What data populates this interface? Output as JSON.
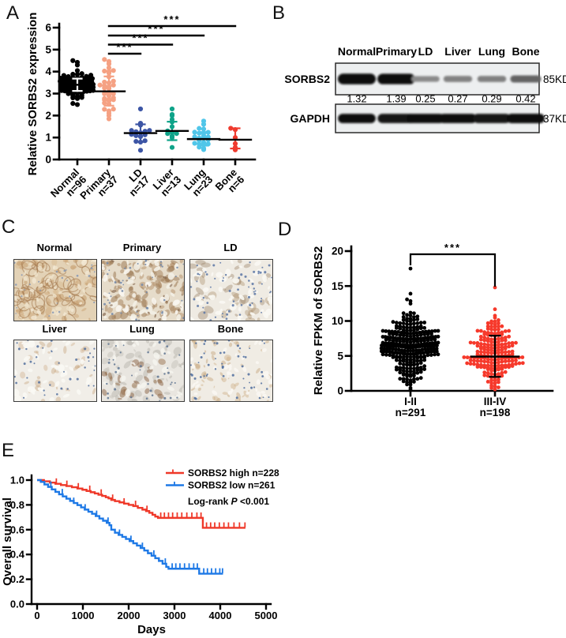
{
  "panels": {
    "a": {
      "label": "A"
    },
    "b": {
      "label": "B",
      "lanes": [
        "Normal",
        "Primary",
        "LD",
        "Liver",
        "Lung",
        "Bone"
      ],
      "rows": [
        {
          "protein": "SORBS2",
          "kd": "85KD",
          "values": [
            "1.32",
            "1.39",
            "0.25",
            "0.27",
            "0.29",
            "0.42"
          ],
          "strengths": [
            1,
            0.98,
            0.22,
            0.27,
            0.28,
            0.45
          ]
        },
        {
          "protein": "GAPDH",
          "kd": "37KD",
          "strengths": [
            0.95,
            0.9,
            0.95,
            0.95,
            0.92,
            1
          ]
        }
      ]
    },
    "c": {
      "label": "C",
      "images": [
        {
          "name": "Normal",
          "texture": {
            "bg": "#E3D2B6",
            "seed": 11,
            "layers": [
              {
                "type": "blob",
                "count": 90,
                "colors": [
                  "#CDA87C",
                  "#C49C6E",
                  "#D8BC94"
                ],
                "rmin": 2,
                "rmax": 6,
                "op": 0.55
              },
              {
                "type": "ring",
                "count": 46,
                "color": "#A87F55",
                "rmin": 4,
                "rmax": 11,
                "op": 0.6
              },
              {
                "type": "blob",
                "count": 50,
                "colors": [
                  "#F2E8D4",
                  "#EFE3CC"
                ],
                "rmin": 1.5,
                "rmax": 4,
                "op": 0.8
              },
              {
                "type": "dot",
                "count": 26,
                "color": "#8093B4",
                "rmin": 0.8,
                "rmax": 1.4,
                "op": 0.8
              }
            ]
          }
        },
        {
          "name": "Primary",
          "texture": {
            "bg": "#E6DCCA",
            "seed": 22,
            "layers": [
              {
                "type": "blob",
                "count": 120,
                "colors": [
                  "#A3805A",
                  "#97744E",
                  "#B3906A"
                ],
                "rmin": 2,
                "rmax": 6,
                "op": 0.5
              },
              {
                "type": "blob",
                "count": 60,
                "colors": [
                  "#F8F5EE",
                  "#F3EFE6"
                ],
                "rmin": 2,
                "rmax": 5,
                "op": 0.9
              },
              {
                "type": "blob",
                "count": 22,
                "colors": [
                  "#6F4F35"
                ],
                "rmin": 1,
                "rmax": 3,
                "op": 0.55
              },
              {
                "type": "dot",
                "count": 44,
                "color": "#7388A8",
                "rmin": 0.8,
                "rmax": 1.5,
                "op": 0.85
              }
            ]
          }
        },
        {
          "name": "LD",
          "texture": {
            "bg": "#EFEBE3",
            "seed": 33,
            "layers": [
              {
                "type": "blob",
                "count": 45,
                "colors": [
                  "#AD916F",
                  "#9C8266"
                ],
                "rmin": 2,
                "rmax": 7,
                "op": 0.4
              },
              {
                "type": "blob",
                "count": 50,
                "colors": [
                  "#FAF8F3"
                ],
                "rmin": 2,
                "rmax": 5,
                "op": 0.9
              },
              {
                "type": "dot",
                "count": 62,
                "color": "#5B76A4",
                "rmin": 0.9,
                "rmax": 1.6,
                "op": 0.85
              }
            ]
          }
        },
        {
          "name": "Liver",
          "texture": {
            "bg": "#F1EEE8",
            "seed": 44,
            "layers": [
              {
                "type": "blob",
                "count": 40,
                "colors": [
                  "#BC9468",
                  "#C8A37A"
                ],
                "rmin": 1.5,
                "rmax": 5,
                "op": 0.35
              },
              {
                "type": "blob",
                "count": 42,
                "colors": [
                  "#FAF8F4"
                ],
                "rmin": 2,
                "rmax": 5,
                "op": 0.9
              },
              {
                "type": "dot",
                "count": 40,
                "color": "#54709E",
                "rmin": 0.9,
                "rmax": 1.6,
                "op": 0.85
              }
            ]
          }
        },
        {
          "name": "Lung",
          "texture": {
            "bg": "#E9E6E0",
            "seed": 55,
            "layers": [
              {
                "type": "blob",
                "count": 70,
                "colors": [
                  "#BDBAB2",
                  "#C8C5BE"
                ],
                "rmin": 2,
                "rmax": 6,
                "op": 0.55
              },
              {
                "type": "blob",
                "count": 26,
                "colors": [
                  "#99714E",
                  "#8A6244"
                ],
                "rmin": 2,
                "rmax": 6,
                "op": 0.5,
                "region": [
                  0,
                  0.75,
                  0.35,
                  1
                ]
              },
              {
                "type": "blob",
                "count": 30,
                "colors": [
                  "#F6F4EF"
                ],
                "rmin": 2,
                "rmax": 5,
                "op": 0.85
              },
              {
                "type": "dot",
                "count": 40,
                "color": "#5F7490",
                "rmin": 0.9,
                "rmax": 1.6,
                "op": 0.85
              }
            ]
          }
        },
        {
          "name": "Bone",
          "texture": {
            "bg": "#F0ECE4",
            "seed": 66,
            "layers": [
              {
                "type": "blob",
                "count": 64,
                "colors": [
                  "#BE9A6C",
                  "#CBAA7E"
                ],
                "rmin": 1.5,
                "rmax": 5,
                "op": 0.4
              },
              {
                "type": "blob",
                "count": 40,
                "colors": [
                  "#FAF8F3"
                ],
                "rmin": 2,
                "rmax": 4,
                "op": 0.85
              },
              {
                "type": "dot",
                "count": 52,
                "color": "#506E9F",
                "rmin": 0.9,
                "rmax": 1.6,
                "op": 0.85
              }
            ]
          }
        }
      ]
    },
    "d": {
      "label": "D"
    },
    "e": {
      "label": "E",
      "annotation_parts": [
        "Log-rank ",
        "P",
        " <0.001"
      ]
    }
  },
  "chart_data": [
    {
      "panel": "A",
      "type": "scatter",
      "title": "",
      "ylabel": "Relative SORBS2 expression",
      "xlabel": "",
      "ylim": [
        0,
        6
      ],
      "ytick_labels": [
        "0",
        "1",
        "2",
        "3",
        "4",
        "5",
        "6"
      ],
      "grid": false,
      "legend_position": "none",
      "groups": [
        {
          "name": "Normal",
          "label2": "n=96",
          "n": 96,
          "color": "#000000",
          "err_color": "#ffffff",
          "mean": 3.4,
          "err_hi": 3.68,
          "err_lo": 3.12,
          "min": 2.45,
          "max": 4.55,
          "half_width": 20,
          "extra_points": [
            4.5,
            4.42,
            4.3,
            2.5,
            2.55
          ]
        },
        {
          "name": "Primary",
          "label2": "n=37",
          "n": 37,
          "color": "#F5A183",
          "err_color": "#F5A183",
          "mean": 3.1,
          "err_hi": 3.78,
          "err_lo": 2.45,
          "min": 1.9,
          "max": 4.6,
          "half_width": 18,
          "extra_points": [
            4.55,
            4.35,
            1.85,
            2.0
          ]
        },
        {
          "name": "LD",
          "label2": "n=17",
          "n": 17,
          "color": "#3C55A5",
          "err_color": "#3C55A5",
          "mean": 1.2,
          "err_hi": 1.6,
          "err_lo": 0.8,
          "min": 0.5,
          "max": 2.2,
          "half_width": 14,
          "extra_points": [
            2.3,
            0.42
          ]
        },
        {
          "name": "Liver",
          "label2": "n=13",
          "n": 13,
          "color": "#0FA389",
          "err_color": "#0FA389",
          "mean": 1.3,
          "err_hi": 1.72,
          "err_lo": 0.88,
          "min": 0.6,
          "max": 2.0,
          "half_width": 14,
          "extra_points": [
            2.3,
            2.05,
            0.55
          ]
        },
        {
          "name": "Lung",
          "label2": "n=23",
          "n": 23,
          "color": "#50C6E9",
          "err_color": "#50C6E9",
          "mean": 0.93,
          "err_hi": 1.25,
          "err_lo": 0.63,
          "min": 0.5,
          "max": 1.5,
          "half_width": 16,
          "extra_points": [
            1.75,
            1.6,
            0.45
          ]
        },
        {
          "name": "Bone",
          "label2": "n=6",
          "n": 6,
          "color": "#EF3B2F",
          "err_color": "#EF3B2F",
          "mean": 0.9,
          "err_hi": 1.42,
          "err_lo": 0.5,
          "half_width": 10,
          "points": [
            1.42,
            1.36,
            1.0,
            0.72,
            0.55,
            0.44
          ]
        }
      ],
      "significance": [
        {
          "from": 1,
          "to": 2,
          "label": "***"
        },
        {
          "from": 1,
          "to": 3,
          "label": "***"
        },
        {
          "from": 1,
          "to": 4,
          "label": "***"
        },
        {
          "from": 1,
          "to": 5,
          "label": "***"
        }
      ]
    },
    {
      "panel": "D",
      "type": "scatter",
      "title": "",
      "ylabel": "Relative FPKM of SORBS2",
      "xlabel": "",
      "ylim": [
        0,
        20
      ],
      "ytick_labels": [
        "0",
        "5",
        "10",
        "15",
        "20"
      ],
      "grid": false,
      "legend_position": "none",
      "groups": [
        {
          "name": "I-II",
          "label2": "n=291",
          "n": 291,
          "color": "#000000",
          "err_color": "#000000",
          "mean": 6.4,
          "err_hi": 9.0,
          "err_lo": 3.8,
          "min": 0.15,
          "max": 14.3,
          "half_width": 35,
          "extra_points": [
            17.5
          ]
        },
        {
          "name": "III-IV",
          "label2": "n=198",
          "n": 198,
          "color": "#F6392B",
          "err_color": "#000000",
          "mean": 4.9,
          "err_hi": 7.9,
          "err_lo": 2.0,
          "min": 0.1,
          "max": 13.2,
          "half_width": 37,
          "extra_points": [
            14.8
          ]
        }
      ],
      "significance": [
        {
          "from": 0,
          "to": 1,
          "label": "***"
        }
      ]
    },
    {
      "panel": "E",
      "type": "line",
      "title": "",
      "xlabel": "Days",
      "ylabel": "Overall survival",
      "xlim": [
        0,
        5000
      ],
      "ylim": [
        0,
        1
      ],
      "xtick_labels": [
        "0",
        "1000",
        "2000",
        "3000",
        "4000",
        "5000"
      ],
      "ytick_labels": [
        "0.0",
        "0.2",
        "0.4",
        "0.6",
        "0.8",
        "1.0"
      ],
      "grid": false,
      "legend_position": "top-right",
      "annotation": "Log-rank P <0.001",
      "series": [
        {
          "name": "SORBS2 high n=228",
          "color": "#EF3829",
          "steps": [
            [
              0,
              1
            ],
            [
              150,
              0.99
            ],
            [
              280,
              0.98
            ],
            [
              400,
              0.97
            ],
            [
              520,
              0.96
            ],
            [
              640,
              0.952
            ],
            [
              760,
              0.942
            ],
            [
              880,
              0.932
            ],
            [
              990,
              0.922
            ],
            [
              1080,
              0.912
            ],
            [
              1170,
              0.902
            ],
            [
              1260,
              0.892
            ],
            [
              1340,
              0.882
            ],
            [
              1420,
              0.872
            ],
            [
              1500,
              0.862
            ],
            [
              1560,
              0.852
            ],
            [
              1620,
              0.84
            ],
            [
              1700,
              0.83
            ],
            [
              1800,
              0.82
            ],
            [
              1900,
              0.81
            ],
            [
              2000,
              0.8
            ],
            [
              2100,
              0.79
            ],
            [
              2200,
              0.776
            ],
            [
              2300,
              0.762
            ],
            [
              2380,
              0.75
            ],
            [
              2450,
              0.736
            ],
            [
              2520,
              0.72
            ],
            [
              2580,
              0.706
            ],
            [
              2640,
              0.695
            ],
            [
              3620,
              0.615
            ],
            [
              4550,
              0.615
            ]
          ],
          "censors": [
            420,
            650,
            900,
            1150,
            1400,
            1650,
            1900,
            2150,
            2400,
            2700,
            2780,
            2870,
            2960,
            3060,
            3160,
            3270,
            3380,
            3490,
            3580,
            3700,
            3790,
            3880,
            3980,
            4080,
            4180,
            4300,
            4420,
            4540
          ]
        },
        {
          "name": "SORBS2 low n=261",
          "color": "#1E79E6",
          "steps": [
            [
              0,
              1
            ],
            [
              80,
              0.985
            ],
            [
              160,
              0.965
            ],
            [
              240,
              0.945
            ],
            [
              320,
              0.925
            ],
            [
              400,
              0.905
            ],
            [
              480,
              0.885
            ],
            [
              560,
              0.868
            ],
            [
              640,
              0.85
            ],
            [
              720,
              0.832
            ],
            [
              800,
              0.815
            ],
            [
              880,
              0.798
            ],
            [
              960,
              0.78
            ],
            [
              1040,
              0.762
            ],
            [
              1120,
              0.745
            ],
            [
              1200,
              0.728
            ],
            [
              1280,
              0.71
            ],
            [
              1360,
              0.69
            ],
            [
              1440,
              0.672
            ],
            [
              1520,
              0.655
            ],
            [
              1580,
              0.636
            ],
            [
              1620,
              0.6
            ],
            [
              1700,
              0.575
            ],
            [
              1780,
              0.558
            ],
            [
              1860,
              0.542
            ],
            [
              1940,
              0.525
            ],
            [
              2020,
              0.508
            ],
            [
              2100,
              0.49
            ],
            [
              2180,
              0.472
            ],
            [
              2260,
              0.452
            ],
            [
              2340,
              0.432
            ],
            [
              2420,
              0.41
            ],
            [
              2500,
              0.39
            ],
            [
              2580,
              0.37
            ],
            [
              2660,
              0.348
            ],
            [
              2740,
              0.325
            ],
            [
              2820,
              0.3
            ],
            [
              2870,
              0.285
            ],
            [
              3540,
              0.245
            ],
            [
              4060,
              0.245
            ]
          ],
          "censors": [
            300,
            550,
            800,
            1050,
            1300,
            1550,
            1800,
            2050,
            2300,
            2550,
            2800,
            2950,
            3030,
            3120,
            3220,
            3320,
            3420,
            3500,
            3640,
            3720,
            3810,
            3900,
            3990,
            4050
          ]
        }
      ]
    }
  ]
}
